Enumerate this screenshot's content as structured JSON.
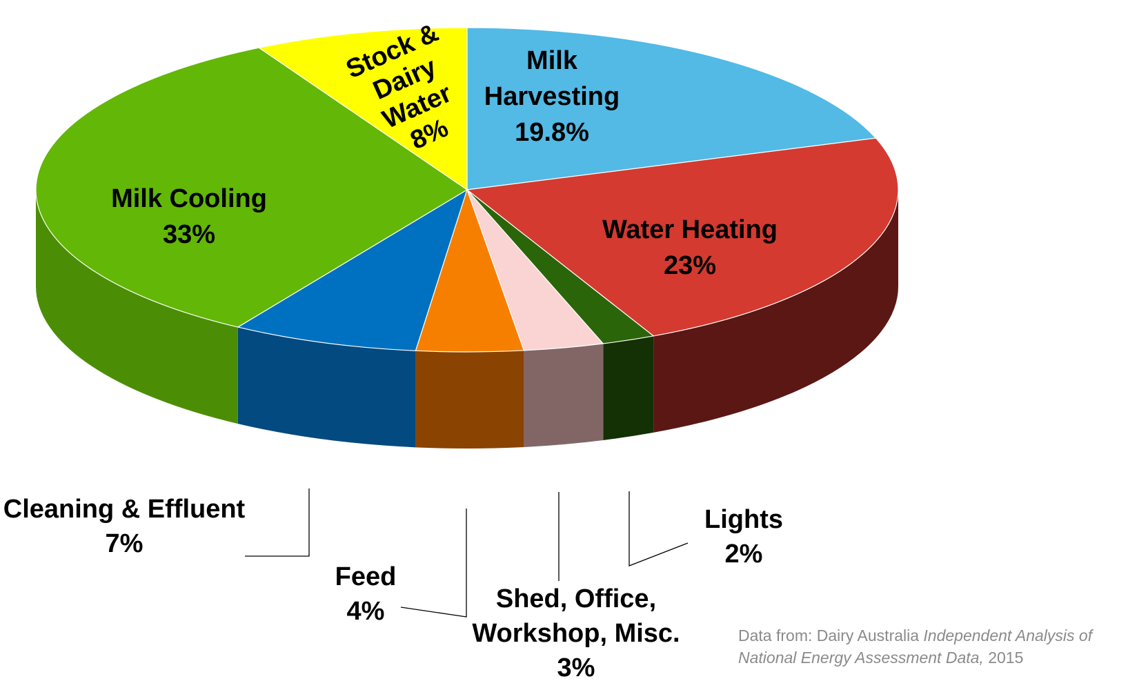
{
  "chart_data": {
    "type": "pie",
    "style": "3d",
    "start_angle": "12 o'clock",
    "direction": "clockwise",
    "slices": [
      {
        "name": "Milk Harvesting",
        "label": "Milk Harvesting",
        "value_label": "19.8%",
        "value": 19.8,
        "color": "#52bae5",
        "side_color": "#3388b0"
      },
      {
        "name": "Water Heating",
        "label": "Water Heating",
        "value_label": "23%",
        "value": 23,
        "color": "#d43a30",
        "side_color": "#5a1714"
      },
      {
        "name": "Lights",
        "label": "Lights",
        "value_label": "2%",
        "value": 2,
        "color": "#2b6509",
        "side_color": "#143005"
      },
      {
        "name": "Shed, Office, Workshop, Misc.",
        "label": "Shed, Office, Workshop, Misc.",
        "value_label": "3%",
        "value": 3,
        "color": "#fad3d3",
        "side_color": "#826666"
      },
      {
        "name": "Feed",
        "label": "Feed",
        "value_label": "4%",
        "value": 4,
        "color": "#f77f00",
        "side_color": "#8a4300"
      },
      {
        "name": "Cleaning & Effluent",
        "label": "Cleaning & Effluent",
        "value_label": "7%",
        "value": 7,
        "color": "#0071c1",
        "side_color": "#034a80"
      },
      {
        "name": "Milk Cooling",
        "label": "Milk Cooling",
        "value_label": "33%",
        "value": 33,
        "color": "#63b706",
        "side_color": "#4b8e05"
      },
      {
        "name": "Stock & Dairy Water",
        "label": "Stock & Dairy Water",
        "value_label": "8%",
        "value": 8,
        "color": "#ffff00",
        "side_color": "#b5b500"
      }
    ],
    "labels_text": {
      "milk_harvesting": [
        "Milk",
        "Harvesting",
        "19.8%"
      ],
      "water_heating": [
        "Water Heating",
        "23%"
      ],
      "lights": [
        "Lights",
        "2%"
      ],
      "shed": [
        "Shed, Office,",
        "Workshop, Misc.",
        "3%"
      ],
      "feed": [
        "Feed",
        "4%"
      ],
      "cleaning": [
        "Cleaning & Effluent",
        "7%"
      ],
      "milk_cooling": [
        "Milk Cooling",
        "33%"
      ],
      "stock": [
        "Stock &",
        "Dairy",
        "Water",
        "8%"
      ]
    }
  },
  "source_note": {
    "prefix": "Data from: Dairy Australia ",
    "title": "Independent Analysis of National Energy Assessment Data,",
    "suffix": " 2015"
  }
}
